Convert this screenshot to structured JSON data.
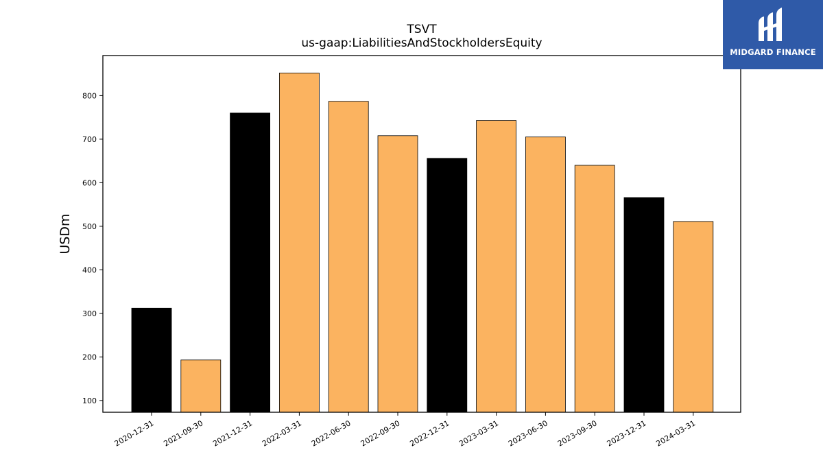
{
  "chart_data": {
    "type": "bar",
    "title": "TSVT",
    "subtitle": "us-gaap:LiabilitiesAndStockholdersEquity",
    "ylabel": "USDm",
    "xlabel": "",
    "categories": [
      "2020-12-31",
      "2021-09-30",
      "2021-12-31",
      "2022-03-31",
      "2022-06-30",
      "2022-09-30",
      "2022-12-31",
      "2023-03-31",
      "2023-06-30",
      "2023-09-30",
      "2023-12-31",
      "2024-03-31"
    ],
    "values": [
      312,
      193,
      760,
      852,
      787,
      708,
      656,
      743,
      705,
      640,
      566,
      511
    ],
    "highlight": [
      true,
      false,
      true,
      false,
      false,
      false,
      true,
      false,
      false,
      false,
      true,
      false
    ],
    "ylim": [
      73,
      892
    ],
    "yticks": [
      100,
      200,
      300,
      400,
      500,
      600,
      700,
      800
    ],
    "colors": {
      "highlight": "#000000",
      "default": "#fbb360",
      "edge": "#000000"
    },
    "grid": false
  },
  "logo": {
    "text": "MIDGARD FINANCE",
    "background": "#2f5aa8"
  }
}
